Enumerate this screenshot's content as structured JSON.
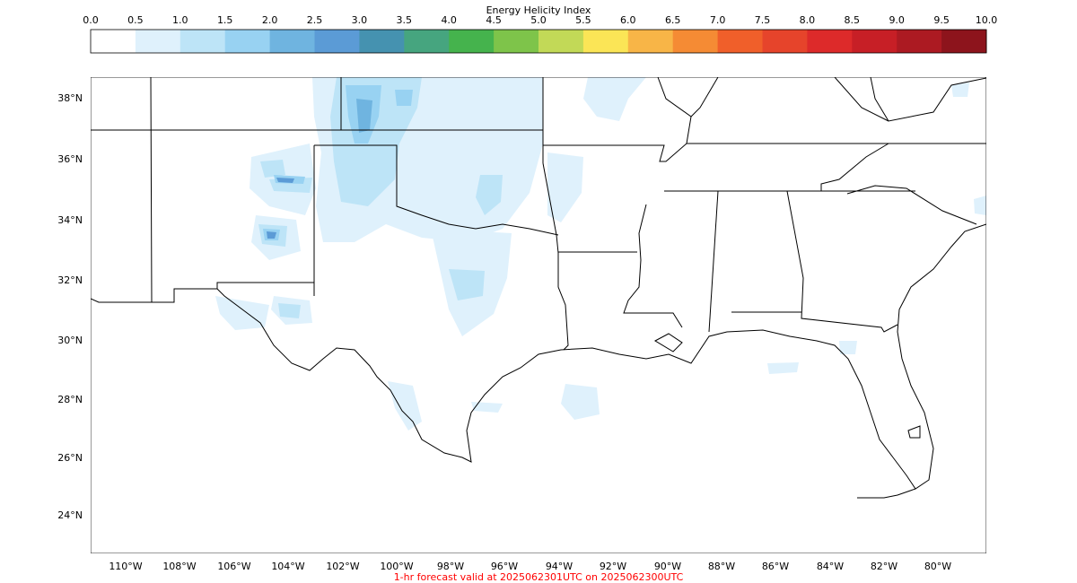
{
  "colorbar": {
    "title": "Energy Helicity Index",
    "ticks": [
      "0.0",
      "0.5",
      "1.0",
      "1.5",
      "2.0",
      "2.5",
      "3.0",
      "3.5",
      "4.0",
      "4.5",
      "5.0",
      "5.5",
      "6.0",
      "6.5",
      "7.0",
      "7.5",
      "8.0",
      "8.5",
      "9.0",
      "9.5",
      "10.0"
    ],
    "colors": [
      "#ffffff",
      "#dff1fc",
      "#bde4f7",
      "#98d2f2",
      "#6fb4e0",
      "#5b9bd6",
      "#4592b0",
      "#46a57f",
      "#45b34d",
      "#7ec44a",
      "#c2d957",
      "#fbe556",
      "#f8b547",
      "#f58b34",
      "#f05f2a",
      "#e6442b",
      "#dd2a2a",
      "#c71f26",
      "#ac1a22",
      "#8d141c"
    ]
  },
  "map": {
    "lat_labels": [
      "38°N",
      "36°N",
      "34°N",
      "32°N",
      "30°N",
      "28°N",
      "26°N",
      "24°N"
    ],
    "lon_labels": [
      "110°W",
      "108°W",
      "106°W",
      "104°W",
      "102°W",
      "100°W",
      "98°W",
      "96°W",
      "94°W",
      "92°W",
      "90°W",
      "88°W",
      "86°W",
      "84°W",
      "82°W",
      "80°W"
    ]
  },
  "footer": {
    "caption": "1-hr forecast valid at 2025062301UTC on 2025062300UTC",
    "caption_color": "#ff0000"
  }
}
